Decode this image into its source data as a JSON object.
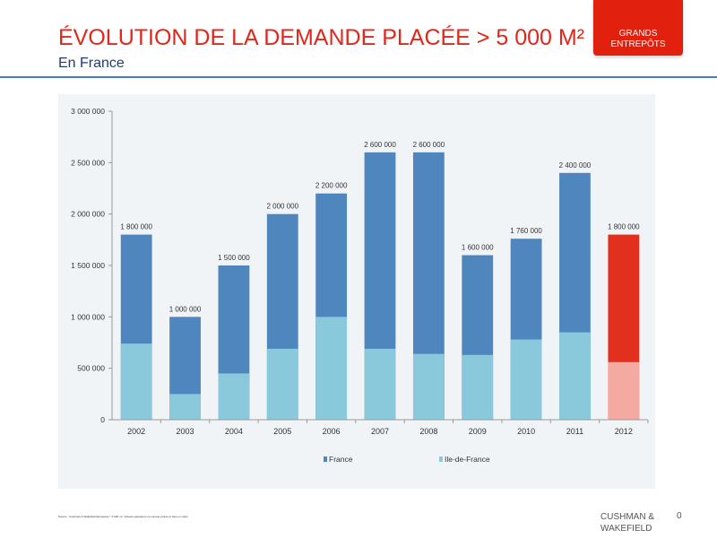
{
  "header": {
    "title": "ÉVOLUTION DE LA DEMANDE PLACÉE > 5 000 M²",
    "subtitle": "En France",
    "badge_line1": "GRANDS",
    "badge_line2": "ENTREPÔTS"
  },
  "footer": {
    "source": "Source : Cushman & Wakefield (Entrepôts > 5 000 m², incluant opérations en compte propre et clés en main)",
    "brand_line1": "CUSHMAN &",
    "brand_line2": "WAKEFIELD",
    "page_number": "0"
  },
  "colors": {
    "france": "#4f86bd",
    "idf": "#8ac8dc",
    "highlight_france": "#e2301f",
    "highlight_idf": "#f4aaa0",
    "title": "#e2261a",
    "axis": "#999999"
  },
  "chart_data": {
    "type": "bar",
    "stacked": false,
    "overlay": true,
    "title": "",
    "xlabel": "",
    "ylabel": "",
    "categories": [
      "2002",
      "2003",
      "2004",
      "2005",
      "2006",
      "2007",
      "2008",
      "2009",
      "2010",
      "2011",
      "2012"
    ],
    "series": [
      {
        "name": "France",
        "values": [
          1800000,
          1000000,
          1500000,
          2000000,
          2200000,
          2600000,
          2600000,
          1600000,
          1760000,
          2400000,
          1800000
        ]
      },
      {
        "name": "Ile-de-France",
        "values": [
          740000,
          250000,
          450000,
          690000,
          1000000,
          690000,
          640000,
          630000,
          780000,
          850000,
          560000
        ]
      }
    ],
    "data_labels": [
      "1 800 000",
      "1 000 000",
      "1 500 000",
      "2 000 000",
      "2 200 000",
      "2 600 000",
      "2 600 000",
      "1 600 000",
      "1 760 000",
      "2 400 000",
      "1 800 000"
    ],
    "highlight_category": "2012",
    "ylim": [
      0,
      3000000
    ],
    "yticks": [
      0,
      500000,
      1000000,
      1500000,
      2000000,
      2500000,
      3000000
    ],
    "ytick_labels": [
      "0",
      "500 000",
      "1 000 000",
      "1 500 000",
      "2 000 000",
      "2 500 000",
      "3 000 000"
    ],
    "grid": false,
    "legend_position": "bottom",
    "legend": [
      "France",
      "Ile-de-France"
    ]
  }
}
